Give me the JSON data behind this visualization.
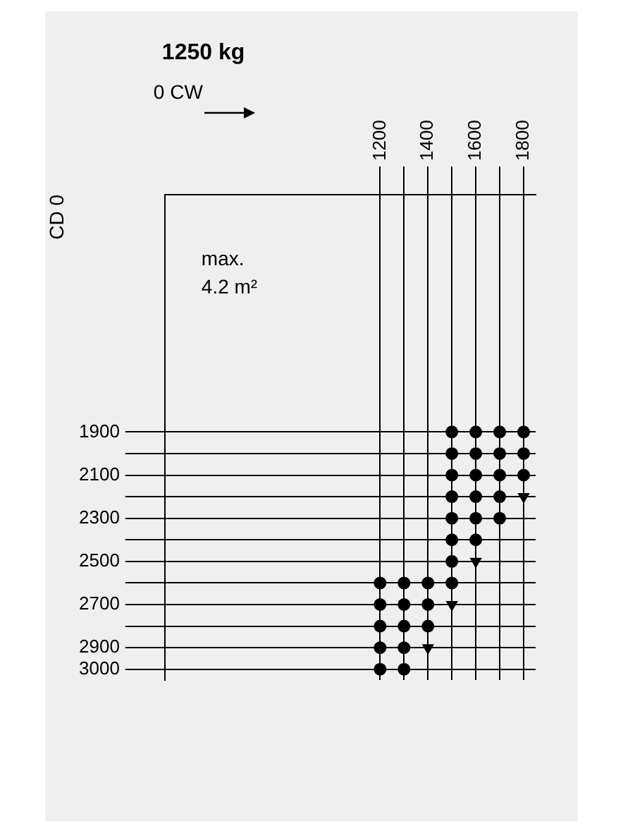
{
  "chart_data": {
    "type": "scatter",
    "title": "1250 kg",
    "xlabel": "0 CW",
    "ylabel": "CD 0",
    "annotations": [
      "max. 4.2 m²"
    ],
    "xlim": [
      300,
      1850
    ],
    "ylim": [
      3050,
      800
    ],
    "xticks": [
      1200,
      {
        "value": 1300,
        "label": null
      },
      1400,
      {
        "value": 1500,
        "label": null
      },
      1600,
      {
        "value": 1700,
        "label": null
      },
      1800
    ],
    "yticks": [
      1900,
      {
        "value": 2000,
        "label": null
      },
      2100,
      {
        "value": 2200,
        "label": null
      },
      2300,
      {
        "value": 2400,
        "label": null
      },
      2500,
      {
        "value": 2600,
        "label": null
      },
      2700,
      {
        "value": 2800,
        "label": null
      },
      2900,
      3000
    ],
    "grid": true,
    "legend": false,
    "series": [
      {
        "marker": "circle",
        "color": "#000000",
        "x": [
          1500,
          1600,
          1700,
          1800,
          1500,
          1600,
          1700,
          1800,
          1500,
          1600,
          1700,
          1800,
          1500,
          1600,
          1700,
          1500,
          1600,
          1700,
          1500,
          1600,
          1500,
          1200,
          1300,
          1400,
          1500,
          1200,
          1300,
          1400,
          1200,
          1300,
          1400,
          1200,
          1300,
          1200,
          1300
        ],
        "values": [
          1900,
          1900,
          1900,
          1900,
          2000,
          2000,
          2000,
          2000,
          2100,
          2100,
          2100,
          2100,
          2200,
          2200,
          2200,
          2300,
          2300,
          2300,
          2400,
          2400,
          2500,
          2600,
          2600,
          2600,
          2600,
          2700,
          2700,
          2700,
          2800,
          2800,
          2800,
          2900,
          2900,
          3000,
          3000
        ]
      },
      {
        "marker": "triangle",
        "color": "#000000",
        "x": [
          1800,
          1600,
          1500,
          1400
        ],
        "values": [
          2200,
          2500,
          2700,
          2900
        ]
      }
    ]
  }
}
